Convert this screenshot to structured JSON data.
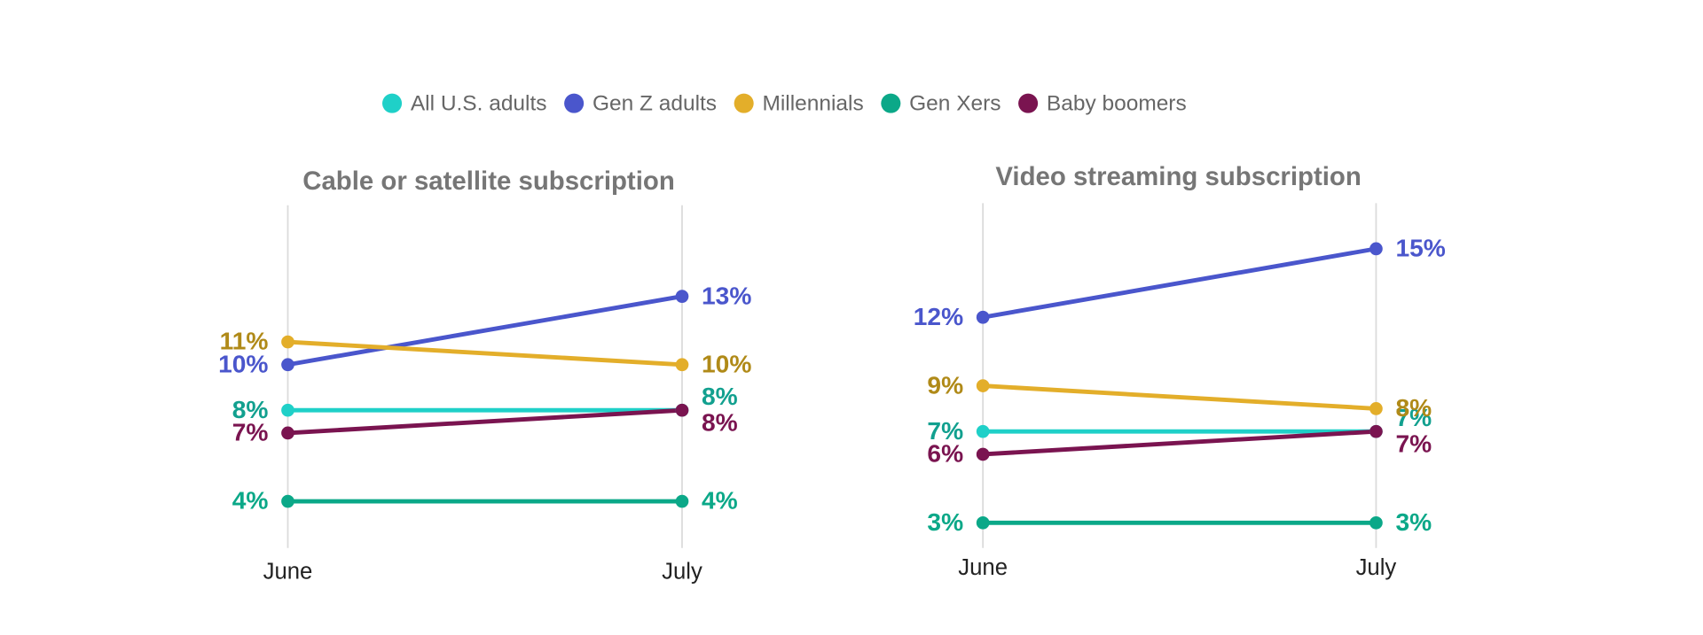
{
  "chart_data": [
    {
      "type": "line",
      "title": "Cable or satellite subscription",
      "categories": [
        "June",
        "July"
      ],
      "ylim": [
        0,
        17
      ],
      "series": [
        {
          "name": "All U.S. adults",
          "color": "#1fd0c8",
          "label_color": "#12a08f",
          "values": [
            8,
            8
          ],
          "value_labels": [
            "8%",
            "8%"
          ]
        },
        {
          "name": "Gen Z adults",
          "color": "#4a56cc",
          "label_color": "#4a56cc",
          "values": [
            10,
            13
          ],
          "value_labels": [
            "10%",
            "13%"
          ]
        },
        {
          "name": "Millennials",
          "color": "#e3ae2a",
          "label_color": "#b08a18",
          "values": [
            11,
            10
          ],
          "value_labels": [
            "11%",
            "10%"
          ]
        },
        {
          "name": "Gen Xers",
          "color": "#0ba888",
          "label_color": "#0ba888",
          "values": [
            4,
            4
          ],
          "value_labels": [
            "4%",
            "4%"
          ]
        },
        {
          "name": "Baby boomers",
          "color": "#7a1450",
          "label_color": "#7a1450",
          "values": [
            7,
            8
          ],
          "value_labels": [
            "7%",
            "8%"
          ]
        }
      ]
    },
    {
      "type": "line",
      "title": "Video streaming subscription",
      "categories": [
        "June",
        "July"
      ],
      "ylim": [
        0,
        17
      ],
      "series": [
        {
          "color": "#1fd0c8",
          "label_color": "#12a08f",
          "values": [
            7,
            7
          ],
          "value_labels": [
            "7%",
            "7%"
          ]
        },
        {
          "color": "#4a56cc",
          "label_color": "#4a56cc",
          "values": [
            12,
            15
          ],
          "value_labels": [
            "12%",
            "15%"
          ]
        },
        {
          "color": "#e3ae2a",
          "label_color": "#b08a18",
          "values": [
            9,
            8
          ],
          "value_labels": [
            "9%",
            "8%"
          ]
        },
        {
          "color": "#0ba888",
          "label_color": "#0ba888",
          "values": [
            3,
            3
          ],
          "value_labels": [
            "3%",
            "3%"
          ]
        },
        {
          "color": "#7a1450",
          "label_color": "#7a1450",
          "values": [
            6,
            7
          ],
          "value_labels": [
            "6%",
            "7%"
          ]
        }
      ]
    }
  ]
}
